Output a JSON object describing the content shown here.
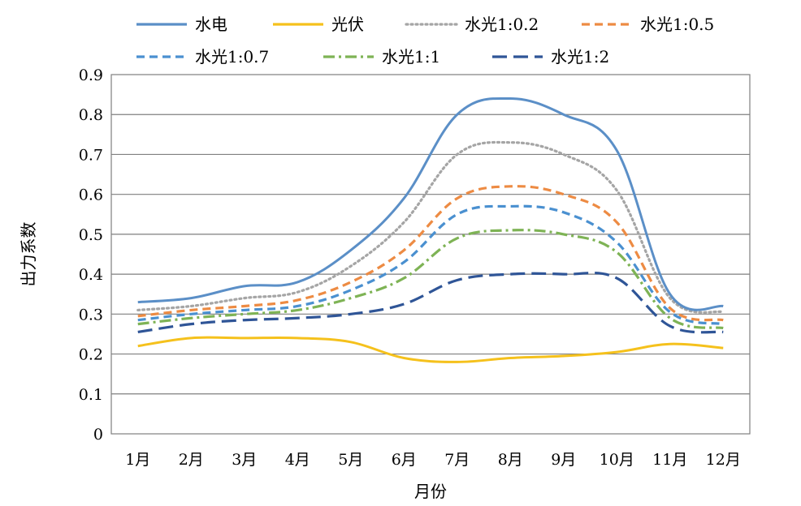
{
  "chart_data": {
    "type": "line",
    "xlabel": "月份",
    "ylabel": "出力系数",
    "categories": [
      "1月",
      "2月",
      "3月",
      "4月",
      "5月",
      "6月",
      "7月",
      "8月",
      "9月",
      "10月",
      "11月",
      "12月"
    ],
    "ylim": [
      0,
      0.9
    ],
    "yticks": [
      "0",
      "0.1",
      "0.2",
      "0.3",
      "0.4",
      "0.5",
      "0.6",
      "0.7",
      "0.8",
      "0.9"
    ],
    "grid": true,
    "legend_position": "top",
    "series": [
      {
        "name": "水电",
        "color": "#5b8fc7",
        "dash": "solid",
        "values": [
          0.33,
          0.34,
          0.37,
          0.38,
          0.46,
          0.59,
          0.8,
          0.84,
          0.8,
          0.71,
          0.35,
          0.32
        ]
      },
      {
        "name": "光伏",
        "color": "#f5c11c",
        "dash": "solid",
        "values": [
          0.22,
          0.24,
          0.24,
          0.24,
          0.23,
          0.19,
          0.18,
          0.19,
          0.195,
          0.205,
          0.225,
          0.215
        ]
      },
      {
        "name": "水光1:0.2",
        "color": "#a5a5a5",
        "dash": "dot",
        "values": [
          0.31,
          0.32,
          0.34,
          0.355,
          0.42,
          0.53,
          0.7,
          0.73,
          0.7,
          0.61,
          0.34,
          0.305
        ]
      },
      {
        "name": "水光1:0.5",
        "color": "#ed8b43",
        "dash": "dash",
        "values": [
          0.295,
          0.31,
          0.32,
          0.335,
          0.38,
          0.46,
          0.59,
          0.62,
          0.6,
          0.53,
          0.315,
          0.285
        ]
      },
      {
        "name": "水光1:0.7",
        "color": "#4a90d0",
        "dash": "dash",
        "values": [
          0.285,
          0.3,
          0.31,
          0.32,
          0.36,
          0.43,
          0.55,
          0.57,
          0.555,
          0.48,
          0.305,
          0.275
        ]
      },
      {
        "name": "水光1:1",
        "color": "#7eb355",
        "dash": "dashdot",
        "values": [
          0.275,
          0.29,
          0.3,
          0.31,
          0.34,
          0.39,
          0.49,
          0.51,
          0.5,
          0.455,
          0.29,
          0.265
        ]
      },
      {
        "name": "水光1:2",
        "color": "#2f5597",
        "dash": "longdash",
        "values": [
          0.255,
          0.275,
          0.285,
          0.29,
          0.3,
          0.325,
          0.385,
          0.4,
          0.4,
          0.39,
          0.27,
          0.255
        ]
      }
    ]
  }
}
